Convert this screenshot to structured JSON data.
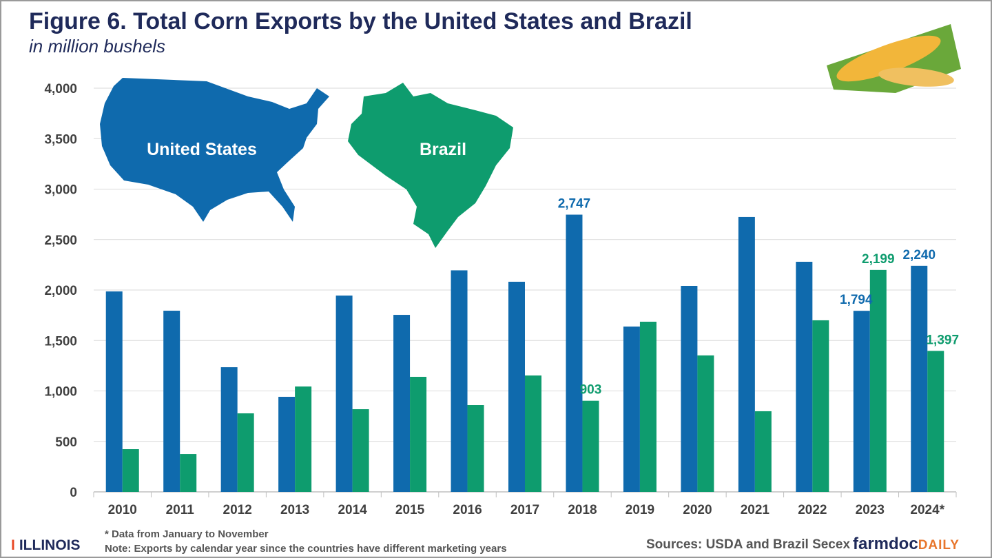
{
  "chart_data": {
    "type": "bar",
    "title": "Figure 6. Total Corn Exports by the United States and Brazil",
    "subtitle": "in million bushels",
    "categories": [
      "2010",
      "2011",
      "2012",
      "2013",
      "2014",
      "2015",
      "2016",
      "2017",
      "2018",
      "2019",
      "2020",
      "2021",
      "2022",
      "2023",
      "2024*"
    ],
    "series": [
      {
        "name": "United States",
        "color": "#0f6aad",
        "values": [
          1986,
          1795,
          1235,
          942,
          1945,
          1754,
          2195,
          2082,
          2747,
          1638,
          2041,
          2724,
          2280,
          1794,
          2240
        ],
        "labels": [
          null,
          null,
          null,
          null,
          null,
          null,
          null,
          null,
          "2,747",
          null,
          null,
          null,
          null,
          "1,794",
          "2,240"
        ]
      },
      {
        "name": "Brazil",
        "color": "#0e9c6e",
        "values": [
          423,
          375,
          778,
          1044,
          819,
          1140,
          860,
          1153,
          903,
          1686,
          1352,
          799,
          1700,
          2199,
          1397
        ],
        "labels": [
          null,
          null,
          null,
          null,
          null,
          null,
          null,
          null,
          "903",
          null,
          null,
          null,
          null,
          "2,199",
          "1,397"
        ]
      }
    ],
    "ylim": [
      0,
      4000
    ],
    "yticks": [
      "0",
      "500",
      "1,000",
      "1,500",
      "2,000",
      "2,500",
      "3,000",
      "3,500",
      "4,000"
    ],
    "grid": true,
    "xlabel": "",
    "ylabel": ""
  },
  "footer": {
    "note1": "* Data from January to November",
    "note2": "Note: Exports by calendar year since the countries have different marketing years",
    "sources": "Sources: USDA and Brazil Secex",
    "brand_a": "farmdoc",
    "brand_b": "DAILY",
    "university": "ILLINOIS",
    "university_mark": "I"
  }
}
